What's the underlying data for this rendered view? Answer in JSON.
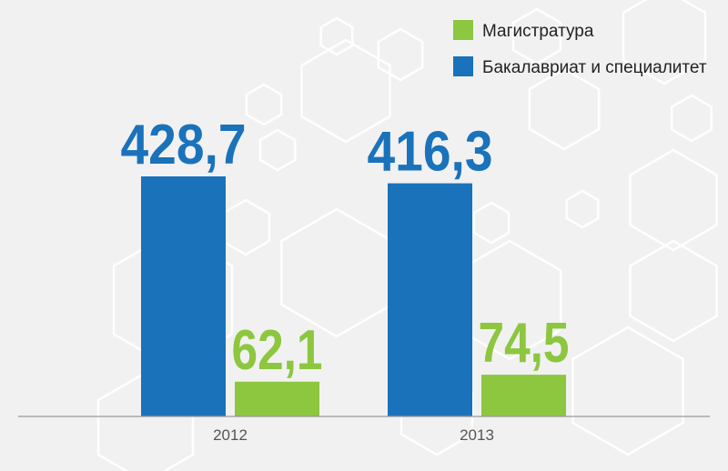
{
  "chart_data": {
    "type": "bar",
    "categories": [
      "2012",
      "2013"
    ],
    "series": [
      {
        "name": "Бакалавриат и специалитет",
        "values": [
          428.7,
          416.3
        ],
        "labels": [
          "428,7",
          "416,3"
        ],
        "color": "#1a72bb"
      },
      {
        "name": "Магистратура",
        "values": [
          62.1,
          74.5
        ],
        "labels": [
          "62,1",
          "74,5"
        ],
        "color": "#8dc63f"
      }
    ],
    "legend": {
      "placement": "top-right",
      "order": [
        "Магистратура",
        "Бакалавриат и специалитет"
      ]
    },
    "ylim": [
      0,
      470
    ],
    "grid": false,
    "colors": {
      "background": "#f1f1f2",
      "hexagon_pattern": "#ffffff",
      "axis": "#999999"
    }
  }
}
